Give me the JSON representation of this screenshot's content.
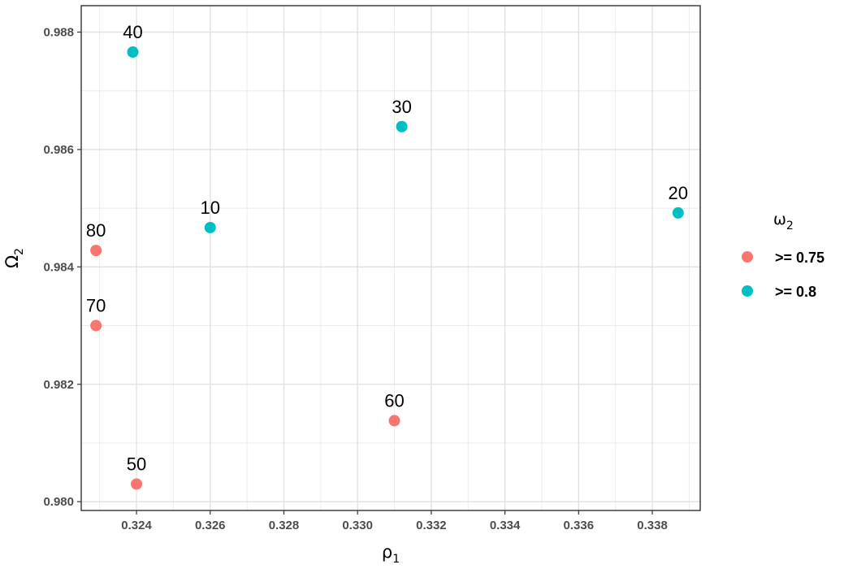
{
  "chart_data": {
    "type": "scatter",
    "title": "",
    "xlabel": {
      "main": "ρ",
      "sub": "1"
    },
    "ylabel": {
      "main": "Ω",
      "sub": "2"
    },
    "xlim": [
      0.3225,
      0.3393
    ],
    "ylim": [
      0.97985,
      0.98845
    ],
    "x_ticks": [
      "0.324",
      "0.326",
      "0.328",
      "0.330",
      "0.332",
      "0.334",
      "0.336",
      "0.338"
    ],
    "x_tick_values": [
      0.324,
      0.326,
      0.328,
      0.33,
      0.332,
      0.334,
      0.336,
      0.338
    ],
    "y_ticks": [
      "0.980",
      "0.982",
      "0.984",
      "0.986",
      "0.988"
    ],
    "y_tick_values": [
      0.98,
      0.982,
      0.984,
      0.986,
      0.988
    ],
    "grid": true,
    "legend": {
      "position": "right",
      "title": {
        "main": "ω",
        "sub": "2"
      },
      "entries": [
        {
          "label": ">= 0.75",
          "color": "#F8766D"
        },
        {
          "label": ">= 0.8",
          "color": "#00BFC4"
        }
      ]
    },
    "series": [
      {
        "name": ">= 0.75",
        "color": "#F8766D",
        "points": [
          {
            "label": "80",
            "x": 0.3229,
            "y": 0.98428
          },
          {
            "label": "70",
            "x": 0.3229,
            "y": 0.983
          },
          {
            "label": "50",
            "x": 0.324,
            "y": 0.9803
          },
          {
            "label": "60",
            "x": 0.331,
            "y": 0.98138
          }
        ]
      },
      {
        "name": ">= 0.8",
        "color": "#00BFC4",
        "points": [
          {
            "label": "40",
            "x": 0.3239,
            "y": 0.98766
          },
          {
            "label": "10",
            "x": 0.326,
            "y": 0.98467
          },
          {
            "label": "30",
            "x": 0.3312,
            "y": 0.98639
          },
          {
            "label": "20",
            "x": 0.3387,
            "y": 0.98492
          }
        ]
      }
    ]
  }
}
